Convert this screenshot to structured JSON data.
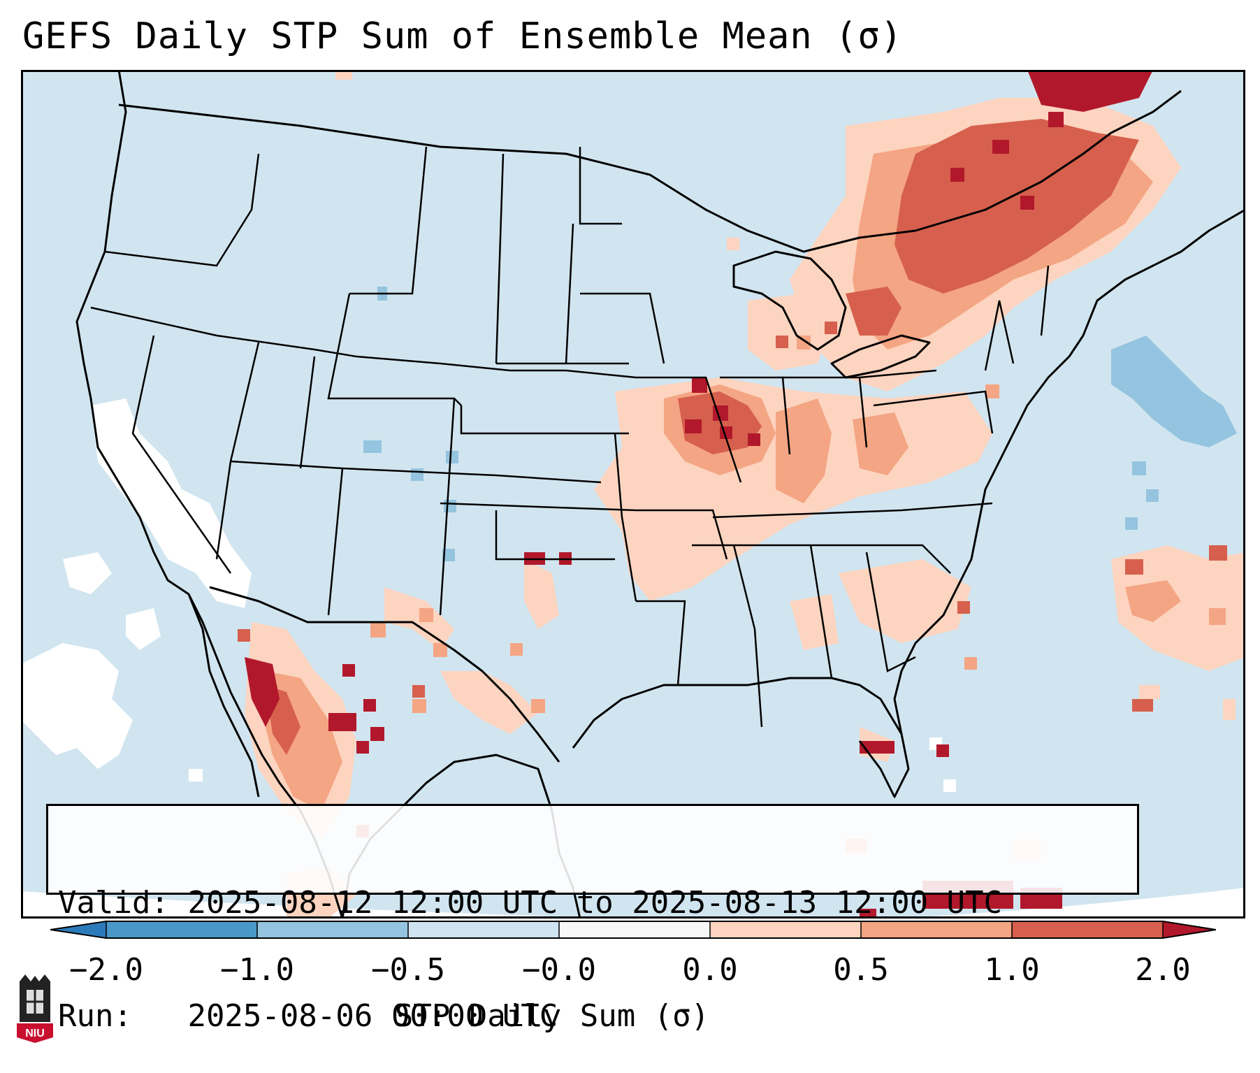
{
  "title": "GEFS Daily STP Sum of Ensemble Mean (σ)",
  "valid": {
    "label": "Valid:",
    "text": "2025-08-12 12:00 UTC to 2025-08-13 12:00 UTC"
  },
  "run": {
    "label": "Run:",
    "text": "2025-08-06 00:00 UTC"
  },
  "colorbar": {
    "label": "STP Daily Sum (σ)",
    "ticks": [
      "−2.0",
      "−1.0",
      "−0.5",
      "−0.0",
      "0.0",
      "0.5",
      "1.0",
      "2.0"
    ],
    "bins": [
      {
        "range": "< -2.0",
        "color": "#2b7bba"
      },
      {
        "range": "-2.0 to -1.0",
        "color": "#4a98c9"
      },
      {
        "range": "-1.0 to -0.5",
        "color": "#94c4df"
      },
      {
        "range": "-0.5 to -0.0",
        "color": "#cfe3f0"
      },
      {
        "range": "-0.0 to 0.0",
        "color": "#f7f7f7"
      },
      {
        "range": "0.0 to 0.5",
        "color": "#fcd4bf"
      },
      {
        "range": "0.5 to 1.0",
        "color": "#f4a583"
      },
      {
        "range": "1.0 to 2.0",
        "color": "#d6604d"
      },
      {
        "range": "> 2.0",
        "color": "#b2182b"
      }
    ]
  },
  "colors": {
    "background": "#d1e5f0",
    "white": "#ffffff",
    "light_red": "#fcd4bf",
    "medium_red": "#f4a583",
    "red": "#d6604d",
    "dark_red": "#b2182b",
    "light_blue": "#94c4df",
    "outline": "#000000"
  },
  "logo": {
    "text": "NIU",
    "description": "Northern Illinois University"
  }
}
